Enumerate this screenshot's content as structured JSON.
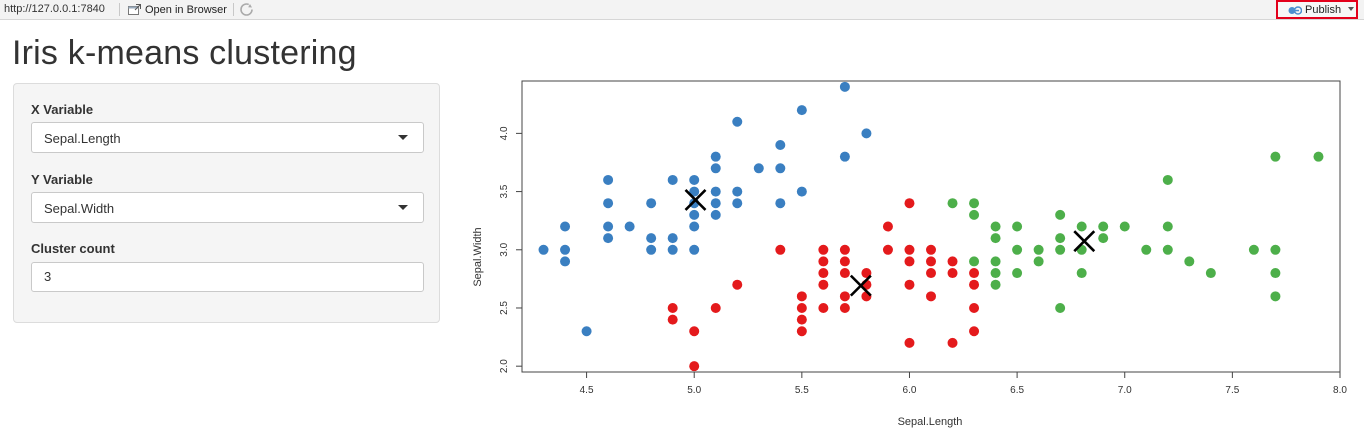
{
  "toolbar": {
    "url": "http://127.0.0.1:7840",
    "open_in_browser": "Open in Browser",
    "publish": "Publish",
    "publish_highlight_color": "#e3001b",
    "icons": [
      "open-in-browser-icon",
      "refresh-icon",
      "publish-icon",
      "chevron-down-icon"
    ]
  },
  "page": {
    "title": "Iris k-means clustering"
  },
  "sidebar": {
    "x_variable": {
      "label": "X Variable",
      "value": "Sepal.Length"
    },
    "y_variable": {
      "label": "Y Variable",
      "value": "Sepal.Width"
    },
    "cluster_count": {
      "label": "Cluster count",
      "value": "3"
    }
  },
  "chart_data": {
    "type": "scatter",
    "title": "",
    "xlabel": "Sepal.Length",
    "ylabel": "Sepal.Width",
    "xlim": [
      4.2,
      8.0
    ],
    "ylim": [
      1.95,
      4.45
    ],
    "xticks": [
      "4.5",
      "5.0",
      "5.5",
      "6.0",
      "6.5",
      "7.0",
      "7.5",
      "8.0"
    ],
    "yticks": [
      "2.0",
      "2.5",
      "3.0",
      "3.5",
      "4.0"
    ],
    "grid": false,
    "legend": "none",
    "series": [
      {
        "color": "#3a7fc1",
        "points": [
          [
            4.3,
            3.0
          ],
          [
            4.4,
            2.9
          ],
          [
            4.4,
            3.0
          ],
          [
            4.4,
            3.2
          ],
          [
            4.5,
            2.3
          ],
          [
            4.6,
            3.1
          ],
          [
            4.6,
            3.2
          ],
          [
            4.6,
            3.4
          ],
          [
            4.6,
            3.6
          ],
          [
            4.7,
            3.2
          ],
          [
            4.8,
            3.0
          ],
          [
            4.8,
            3.1
          ],
          [
            4.8,
            3.4
          ],
          [
            4.9,
            3.0
          ],
          [
            4.9,
            3.1
          ],
          [
            4.9,
            3.6
          ],
          [
            5.0,
            3.0
          ],
          [
            5.0,
            3.2
          ],
          [
            5.0,
            3.3
          ],
          [
            5.0,
            3.4
          ],
          [
            5.0,
            3.5
          ],
          [
            5.0,
            3.6
          ],
          [
            5.1,
            3.3
          ],
          [
            5.1,
            3.4
          ],
          [
            5.1,
            3.5
          ],
          [
            5.1,
            3.7
          ],
          [
            5.1,
            3.8
          ],
          [
            5.2,
            3.4
          ],
          [
            5.2,
            3.5
          ],
          [
            5.2,
            4.1
          ],
          [
            5.3,
            3.7
          ],
          [
            5.4,
            3.4
          ],
          [
            5.4,
            3.7
          ],
          [
            5.4,
            3.9
          ],
          [
            5.5,
            3.5
          ],
          [
            5.5,
            4.2
          ],
          [
            5.7,
            3.8
          ],
          [
            5.7,
            4.4
          ],
          [
            5.8,
            4.0
          ]
        ]
      },
      {
        "color": "#e41a1c",
        "points": [
          [
            4.9,
            2.4
          ],
          [
            4.9,
            2.5
          ],
          [
            5.0,
            2.0
          ],
          [
            5.0,
            2.3
          ],
          [
            5.1,
            2.5
          ],
          [
            5.2,
            2.7
          ],
          [
            5.4,
            3.0
          ],
          [
            5.5,
            2.3
          ],
          [
            5.5,
            2.4
          ],
          [
            5.5,
            2.5
          ],
          [
            5.5,
            2.6
          ],
          [
            5.6,
            2.5
          ],
          [
            5.6,
            2.7
          ],
          [
            5.6,
            2.8
          ],
          [
            5.6,
            2.9
          ],
          [
            5.6,
            3.0
          ],
          [
            5.7,
            2.5
          ],
          [
            5.7,
            2.6
          ],
          [
            5.7,
            2.8
          ],
          [
            5.7,
            2.9
          ],
          [
            5.7,
            3.0
          ],
          [
            5.8,
            2.6
          ],
          [
            5.8,
            2.7
          ],
          [
            5.8,
            2.8
          ],
          [
            5.9,
            3.0
          ],
          [
            5.9,
            3.2
          ],
          [
            6.0,
            2.2
          ],
          [
            6.0,
            2.7
          ],
          [
            6.0,
            2.9
          ],
          [
            6.0,
            3.0
          ],
          [
            6.0,
            3.4
          ],
          [
            6.1,
            2.6
          ],
          [
            6.1,
            2.8
          ],
          [
            6.1,
            2.9
          ],
          [
            6.1,
            3.0
          ],
          [
            6.2,
            2.2
          ],
          [
            6.2,
            2.8
          ],
          [
            6.2,
            2.9
          ],
          [
            6.3,
            2.3
          ],
          [
            6.3,
            2.5
          ],
          [
            6.3,
            2.7
          ],
          [
            6.3,
            2.8
          ]
        ]
      },
      {
        "color": "#4daf4a",
        "points": [
          [
            6.2,
            3.4
          ],
          [
            6.3,
            2.9
          ],
          [
            6.3,
            3.3
          ],
          [
            6.3,
            3.4
          ],
          [
            6.4,
            2.7
          ],
          [
            6.4,
            2.8
          ],
          [
            6.4,
            2.9
          ],
          [
            6.4,
            3.1
          ],
          [
            6.4,
            3.2
          ],
          [
            6.5,
            2.8
          ],
          [
            6.5,
            3.0
          ],
          [
            6.5,
            3.2
          ],
          [
            6.6,
            2.9
          ],
          [
            6.6,
            3.0
          ],
          [
            6.7,
            2.5
          ],
          [
            6.7,
            3.0
          ],
          [
            6.7,
            3.1
          ],
          [
            6.7,
            3.3
          ],
          [
            6.8,
            2.8
          ],
          [
            6.8,
            3.0
          ],
          [
            6.8,
            3.2
          ],
          [
            6.9,
            3.1
          ],
          [
            6.9,
            3.2
          ],
          [
            7.0,
            3.2
          ],
          [
            7.1,
            3.0
          ],
          [
            7.2,
            3.0
          ],
          [
            7.2,
            3.2
          ],
          [
            7.2,
            3.6
          ],
          [
            7.3,
            2.9
          ],
          [
            7.4,
            2.8
          ],
          [
            7.6,
            3.0
          ],
          [
            7.7,
            2.6
          ],
          [
            7.7,
            2.8
          ],
          [
            7.7,
            3.0
          ],
          [
            7.7,
            3.8
          ],
          [
            7.9,
            3.8
          ]
        ]
      }
    ],
    "centers": [
      [
        5.006,
        3.428
      ],
      [
        5.774,
        2.692
      ],
      [
        6.812,
        3.074
      ]
    ]
  }
}
